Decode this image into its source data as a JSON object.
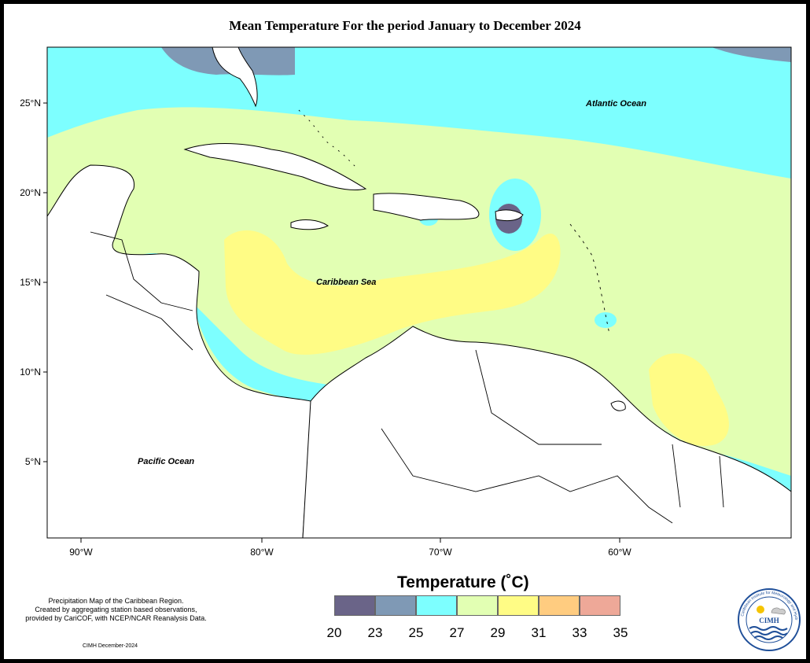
{
  "title": "Mean Temperature For the period January to December 2024",
  "axes": {
    "lat_labels": [
      "25°N",
      "20°N",
      "15°N",
      "10°N",
      "5°N"
    ],
    "lon_labels": [
      "90°W",
      "80°W",
      "70°W",
      "60°W"
    ]
  },
  "map_labels": {
    "atlantic": "Atlantic Ocean",
    "caribbean": "Caribbean Sea",
    "pacific": "Pacific Ocean"
  },
  "legend": {
    "title": "Temperature (˚C)",
    "colors": [
      "#6a6488",
      "#7f99b5",
      "#7dffff",
      "#e2ffb3",
      "#fffc85",
      "#ffcc80",
      "#eea898"
    ],
    "ticks": [
      "20",
      "23",
      "25",
      "27",
      "29",
      "31",
      "33",
      "35"
    ]
  },
  "note": {
    "line1": "Precipitation Map of the Caribbean Region.",
    "line2": "Created by aggregating station based observations,",
    "line3": "provided by CariCOF, with NCEP/NCAR Reanalysis Data."
  },
  "credit": "CIMH December-2024",
  "logo": {
    "abbr": "CIMH",
    "ring_text": "Caribbean Institute for Meteorology and Hydrology"
  }
}
